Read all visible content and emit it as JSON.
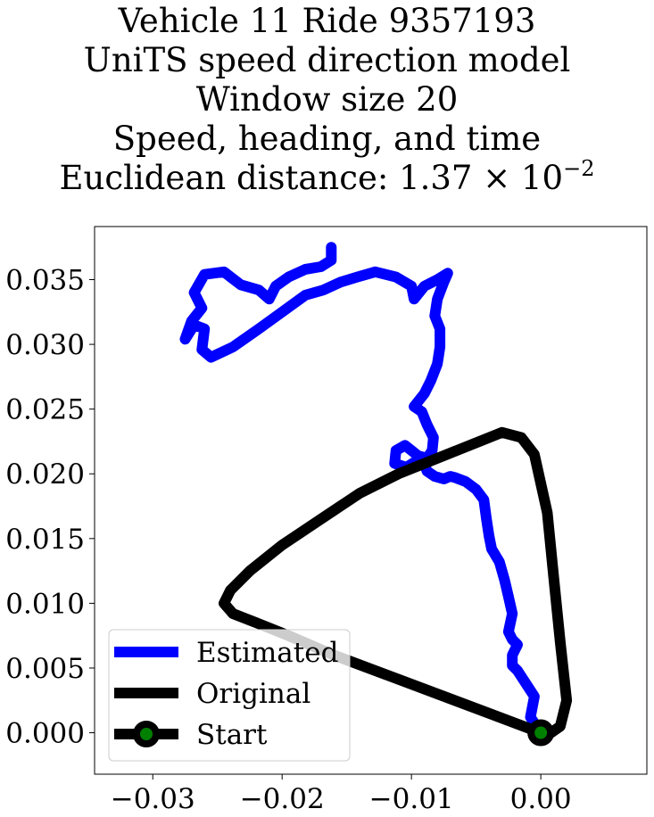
{
  "chart_data": {
    "type": "line",
    "title_lines": [
      "Vehicle 11 Ride 9357193",
      "UniTS speed direction model",
      "Window size 20",
      "Speed, heading, and time"
    ],
    "title_distance_prefix": "Euclidean distance: 1.37 × 10",
    "title_distance_exponent": "−2",
    "xlim": [
      -0.0345,
      0.0082
    ],
    "ylim": [
      -0.0032,
      0.0391
    ],
    "grid": false,
    "legend_position": "lower-left",
    "x_ticks": [
      -0.03,
      -0.02,
      -0.01,
      0.0
    ],
    "x_tick_labels": [
      "−0.03",
      "−0.02",
      "−0.01",
      "0.00"
    ],
    "y_ticks": [
      0.0,
      0.005,
      0.01,
      0.015,
      0.02,
      0.025,
      0.03,
      0.035
    ],
    "y_tick_labels": [
      "0.000",
      "0.005",
      "0.010",
      "0.015",
      "0.020",
      "0.025",
      "0.030",
      "0.035"
    ],
    "series": [
      {
        "name": "Estimated",
        "color": "#0000ff",
        "points": [
          [
            0.0,
            0.0
          ],
          [
            -0.0008,
            0.0012
          ],
          [
            -0.0005,
            0.0028
          ],
          [
            -0.0018,
            0.0048
          ],
          [
            -0.0022,
            0.0052
          ],
          [
            -0.0022,
            0.006
          ],
          [
            -0.0018,
            0.0068
          ],
          [
            -0.0022,
            0.0072
          ],
          [
            -0.0025,
            0.0078
          ],
          [
            -0.0022,
            0.0092
          ],
          [
            -0.0025,
            0.0105
          ],
          [
            -0.0028,
            0.0118
          ],
          [
            -0.0032,
            0.0132
          ],
          [
            -0.0038,
            0.0142
          ],
          [
            -0.004,
            0.0152
          ],
          [
            -0.0042,
            0.0165
          ],
          [
            -0.0044,
            0.018
          ],
          [
            -0.005,
            0.0188
          ],
          [
            -0.0058,
            0.0194
          ],
          [
            -0.0066,
            0.0197
          ],
          [
            -0.007,
            0.0198
          ],
          [
            -0.0075,
            0.0196
          ],
          [
            -0.0082,
            0.0198
          ],
          [
            -0.0088,
            0.0202
          ],
          [
            -0.009,
            0.0208
          ],
          [
            -0.0096,
            0.021
          ],
          [
            -0.0104,
            0.0205
          ],
          [
            -0.0113,
            0.0208
          ],
          [
            -0.0112,
            0.0218
          ],
          [
            -0.0105,
            0.0222
          ],
          [
            -0.01,
            0.0218
          ],
          [
            -0.0095,
            0.0214
          ],
          [
            -0.0088,
            0.0212
          ],
          [
            -0.0084,
            0.0218
          ],
          [
            -0.0083,
            0.0228
          ],
          [
            -0.0088,
            0.0238
          ],
          [
            -0.0092,
            0.0248
          ],
          [
            -0.0098,
            0.0252
          ],
          [
            -0.009,
            0.0262
          ],
          [
            -0.0085,
            0.0272
          ],
          [
            -0.008,
            0.0285
          ],
          [
            -0.0078,
            0.0298
          ],
          [
            -0.0078,
            0.0312
          ],
          [
            -0.0082,
            0.0322
          ],
          [
            -0.008,
            0.0335
          ],
          [
            -0.0075,
            0.0348
          ],
          [
            -0.0072,
            0.0355
          ],
          [
            -0.008,
            0.035
          ],
          [
            -0.009,
            0.0345
          ],
          [
            -0.0098,
            0.0335
          ],
          [
            -0.01,
            0.0345
          ],
          [
            -0.0112,
            0.0352
          ],
          [
            -0.0128,
            0.0356
          ],
          [
            -0.0142,
            0.0352
          ],
          [
            -0.0155,
            0.0348
          ],
          [
            -0.0168,
            0.0342
          ],
          [
            -0.0182,
            0.0338
          ],
          [
            -0.02,
            0.0325
          ],
          [
            -0.0218,
            0.0312
          ],
          [
            -0.0238,
            0.0298
          ],
          [
            -0.0255,
            0.029
          ],
          [
            -0.0262,
            0.0296
          ],
          [
            -0.026,
            0.0312
          ],
          [
            -0.0268,
            0.0315
          ],
          [
            -0.0275,
            0.0304
          ],
          [
            -0.027,
            0.0318
          ],
          [
            -0.0262,
            0.0328
          ],
          [
            -0.0268,
            0.034
          ],
          [
            -0.026,
            0.0354
          ],
          [
            -0.0245,
            0.0356
          ],
          [
            -0.0232,
            0.0346
          ],
          [
            -0.0218,
            0.0342
          ],
          [
            -0.021,
            0.0335
          ],
          [
            -0.0205,
            0.0345
          ],
          [
            -0.0195,
            0.0352
          ],
          [
            -0.0182,
            0.0358
          ],
          [
            -0.017,
            0.036
          ],
          [
            -0.0162,
            0.0365
          ],
          [
            -0.0162,
            0.0375
          ]
        ]
      },
      {
        "name": "Original",
        "color": "#000000",
        "points": [
          [
            0.0,
            0.0
          ],
          [
            -0.004,
            0.0015
          ],
          [
            -0.008,
            0.003
          ],
          [
            -0.012,
            0.0045
          ],
          [
            -0.016,
            0.006
          ],
          [
            -0.0195,
            0.0075
          ],
          [
            -0.022,
            0.0085
          ],
          [
            -0.0238,
            0.0092
          ],
          [
            -0.0245,
            0.01
          ],
          [
            -0.024,
            0.011
          ],
          [
            -0.0225,
            0.0125
          ],
          [
            -0.02,
            0.0145
          ],
          [
            -0.017,
            0.0165
          ],
          [
            -0.014,
            0.0185
          ],
          [
            -0.011,
            0.02
          ],
          [
            -0.008,
            0.0212
          ],
          [
            -0.005,
            0.0224
          ],
          [
            -0.003,
            0.0232
          ],
          [
            -0.0015,
            0.0228
          ],
          [
            -0.0005,
            0.0215
          ],
          [
            0.0005,
            0.017
          ],
          [
            0.001,
            0.012
          ],
          [
            0.0015,
            0.007
          ],
          [
            0.002,
            0.0025
          ],
          [
            0.0015,
            0.0005
          ],
          [
            0.0005,
            -0.0002
          ],
          [
            0.0,
            0.0
          ]
        ]
      }
    ],
    "start_point": {
      "x": 0.0,
      "y": 0.0
    },
    "legend": [
      {
        "label": "Estimated",
        "color": "#0000ff"
      },
      {
        "label": "Original",
        "color": "#000000"
      },
      {
        "label": "Start",
        "color": "#000000",
        "marker_color": "#008000"
      }
    ]
  }
}
